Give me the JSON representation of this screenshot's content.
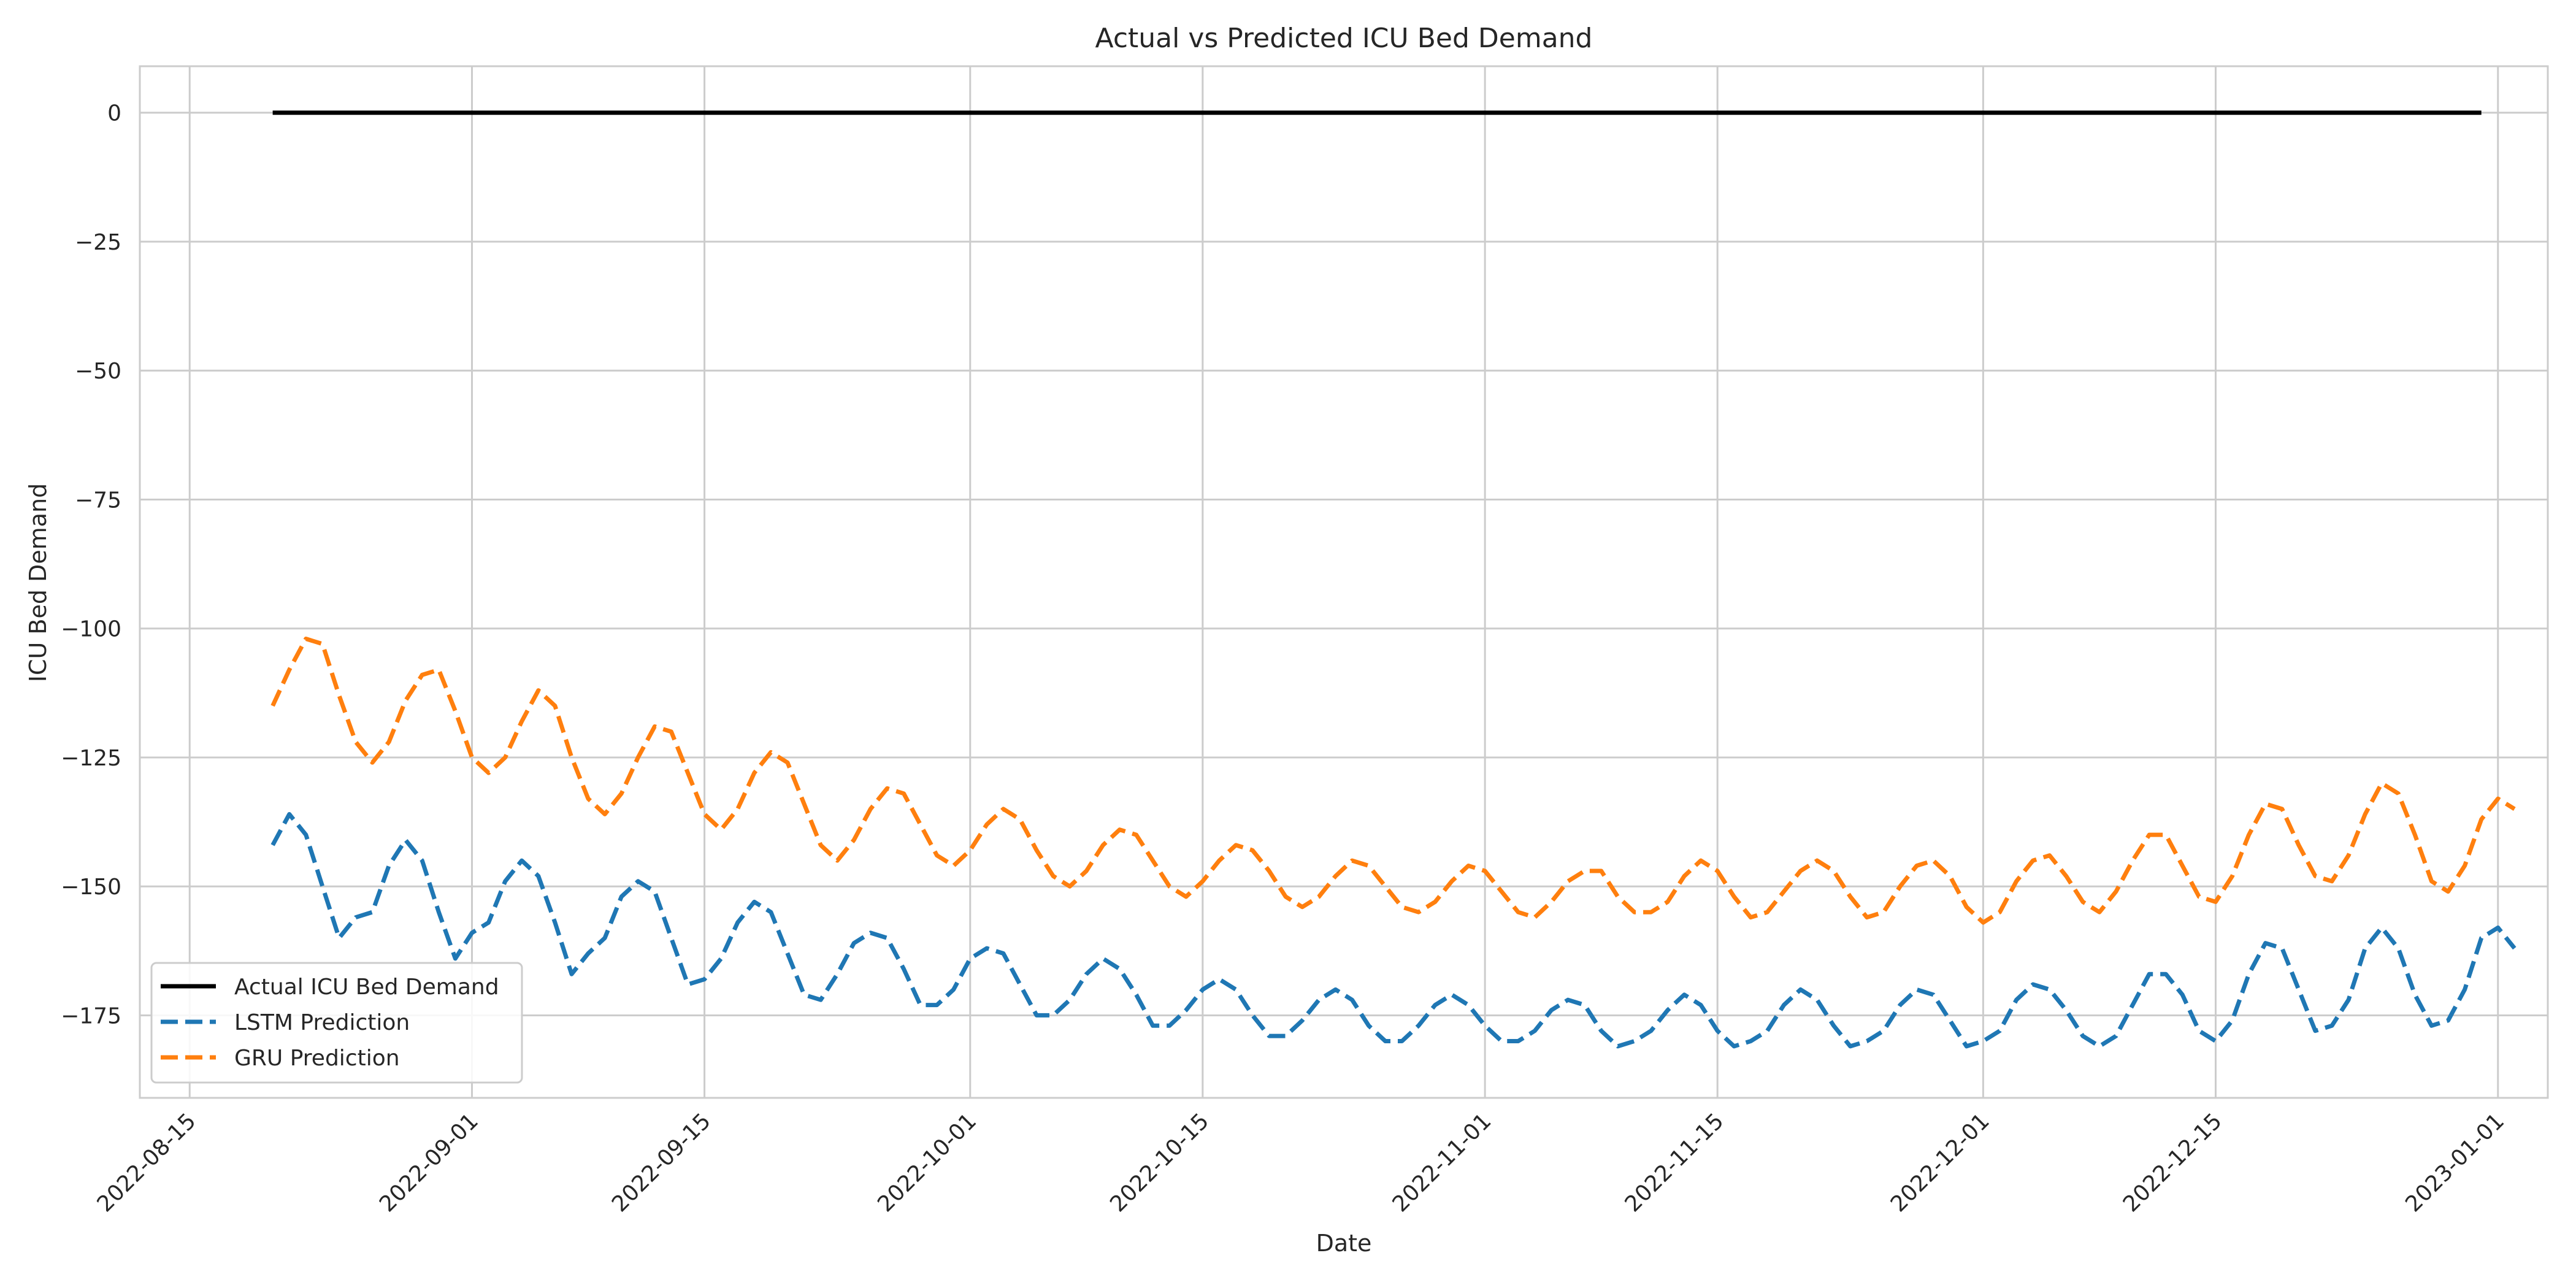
{
  "chart_data": {
    "type": "line",
    "title": "Actual vs Predicted ICU Bed Demand",
    "xlabel": "Date",
    "ylabel": "ICU Bed Demand",
    "x_start": "2022-08-20",
    "x_end": "2022-12-31",
    "xlim": [
      "2022-08-12",
      "2023-01-04"
    ],
    "ylim": [
      -191,
      9
    ],
    "x_ticks": [
      "2022-08-15",
      "2022-09-01",
      "2022-09-15",
      "2022-10-01",
      "2022-10-15",
      "2022-11-01",
      "2022-11-15",
      "2022-12-01",
      "2022-12-15",
      "2023-01-01"
    ],
    "y_ticks": [
      0,
      -25,
      -50,
      -75,
      -100,
      -125,
      -150,
      -175
    ],
    "y_tick_labels": [
      "0",
      "−25",
      "−50",
      "−75",
      "−100",
      "−125",
      "−150",
      "−175"
    ],
    "grid": true,
    "legend_position": "lower-left",
    "series": [
      {
        "name": "Actual ICU Bed Demand",
        "color": "#000000",
        "style": "solid",
        "points": [
          [
            "2022-08-20",
            0
          ],
          [
            "2022-12-31",
            0
          ]
        ]
      },
      {
        "name": "LSTM Prediction",
        "color": "#1f77b4",
        "style": "dashed",
        "points": [
          [
            "2022-08-20",
            -142
          ],
          [
            "2022-08-21",
            -136
          ],
          [
            "2022-08-22",
            -140
          ],
          [
            "2022-08-23",
            -150
          ],
          [
            "2022-08-24",
            -160
          ],
          [
            "2022-08-25",
            -156
          ],
          [
            "2022-08-26",
            -155
          ],
          [
            "2022-08-27",
            -146
          ],
          [
            "2022-08-28",
            -141
          ],
          [
            "2022-08-29",
            -145
          ],
          [
            "2022-08-30",
            -155
          ],
          [
            "2022-08-31",
            -164
          ],
          [
            "2022-09-01",
            -159
          ],
          [
            "2022-09-02",
            -157
          ],
          [
            "2022-09-03",
            -149
          ],
          [
            "2022-09-04",
            -145
          ],
          [
            "2022-09-05",
            -148
          ],
          [
            "2022-09-06",
            -157
          ],
          [
            "2022-09-07",
            -167
          ],
          [
            "2022-09-08",
            -163
          ],
          [
            "2022-09-09",
            -160
          ],
          [
            "2022-09-10",
            -152
          ],
          [
            "2022-09-11",
            -149
          ],
          [
            "2022-09-12",
            -151
          ],
          [
            "2022-09-13",
            -160
          ],
          [
            "2022-09-14",
            -169
          ],
          [
            "2022-09-15",
            -168
          ],
          [
            "2022-09-16",
            -164
          ],
          [
            "2022-09-17",
            -157
          ],
          [
            "2022-09-18",
            -153
          ],
          [
            "2022-09-19",
            -155
          ],
          [
            "2022-09-20",
            -163
          ],
          [
            "2022-09-21",
            -171
          ],
          [
            "2022-09-22",
            -172
          ],
          [
            "2022-09-23",
            -167
          ],
          [
            "2022-09-24",
            -161
          ],
          [
            "2022-09-25",
            -159
          ],
          [
            "2022-09-26",
            -160
          ],
          [
            "2022-09-27",
            -166
          ],
          [
            "2022-09-28",
            -173
          ],
          [
            "2022-09-29",
            -173
          ],
          [
            "2022-09-30",
            -170
          ],
          [
            "2022-10-01",
            -164
          ],
          [
            "2022-10-02",
            -162
          ],
          [
            "2022-10-03",
            -163
          ],
          [
            "2022-10-04",
            -169
          ],
          [
            "2022-10-05",
            -175
          ],
          [
            "2022-10-06",
            -175
          ],
          [
            "2022-10-07",
            -172
          ],
          [
            "2022-10-08",
            -167
          ],
          [
            "2022-10-09",
            -164
          ],
          [
            "2022-10-10",
            -166
          ],
          [
            "2022-10-11",
            -171
          ],
          [
            "2022-10-12",
            -177
          ],
          [
            "2022-10-13",
            -177
          ],
          [
            "2022-10-14",
            -174
          ],
          [
            "2022-10-15",
            -170
          ],
          [
            "2022-10-16",
            -168
          ],
          [
            "2022-10-17",
            -170
          ],
          [
            "2022-10-18",
            -175
          ],
          [
            "2022-10-19",
            -179
          ],
          [
            "2022-10-20",
            -179
          ],
          [
            "2022-10-21",
            -176
          ],
          [
            "2022-10-22",
            -172
          ],
          [
            "2022-10-23",
            -170
          ],
          [
            "2022-10-24",
            -172
          ],
          [
            "2022-10-25",
            -177
          ],
          [
            "2022-10-26",
            -180
          ],
          [
            "2022-10-27",
            -180
          ],
          [
            "2022-10-28",
            -177
          ],
          [
            "2022-10-29",
            -173
          ],
          [
            "2022-10-30",
            -171
          ],
          [
            "2022-10-31",
            -173
          ],
          [
            "2022-11-01",
            -177
          ],
          [
            "2022-11-02",
            -180
          ],
          [
            "2022-11-03",
            -180
          ],
          [
            "2022-11-04",
            -178
          ],
          [
            "2022-11-05",
            -174
          ],
          [
            "2022-11-06",
            -172
          ],
          [
            "2022-11-07",
            -173
          ],
          [
            "2022-11-08",
            -178
          ],
          [
            "2022-11-09",
            -181
          ],
          [
            "2022-11-10",
            -180
          ],
          [
            "2022-11-11",
            -178
          ],
          [
            "2022-11-12",
            -174
          ],
          [
            "2022-11-13",
            -171
          ],
          [
            "2022-11-14",
            -173
          ],
          [
            "2022-11-15",
            -178
          ],
          [
            "2022-11-16",
            -181
          ],
          [
            "2022-11-17",
            -180
          ],
          [
            "2022-11-18",
            -178
          ],
          [
            "2022-11-19",
            -173
          ],
          [
            "2022-11-20",
            -170
          ],
          [
            "2022-11-21",
            -172
          ],
          [
            "2022-11-22",
            -177
          ],
          [
            "2022-11-23",
            -181
          ],
          [
            "2022-11-24",
            -180
          ],
          [
            "2022-11-25",
            -178
          ],
          [
            "2022-11-26",
            -173
          ],
          [
            "2022-11-27",
            -170
          ],
          [
            "2022-11-28",
            -171
          ],
          [
            "2022-11-29",
            -176
          ],
          [
            "2022-11-30",
            -181
          ],
          [
            "2022-12-01",
            -180
          ],
          [
            "2022-12-02",
            -178
          ],
          [
            "2022-12-03",
            -172
          ],
          [
            "2022-12-04",
            -169
          ],
          [
            "2022-12-05",
            -170
          ],
          [
            "2022-12-06",
            -174
          ],
          [
            "2022-12-07",
            -179
          ],
          [
            "2022-12-08",
            -181
          ],
          [
            "2022-12-09",
            -179
          ],
          [
            "2022-12-10",
            -173
          ],
          [
            "2022-12-11",
            -167
          ],
          [
            "2022-12-12",
            -167
          ],
          [
            "2022-12-13",
            -171
          ],
          [
            "2022-12-14",
            -178
          ],
          [
            "2022-12-15",
            -180
          ],
          [
            "2022-12-16",
            -176
          ],
          [
            "2022-12-17",
            -167
          ],
          [
            "2022-12-18",
            -161
          ],
          [
            "2022-12-19",
            -162
          ],
          [
            "2022-12-20",
            -170
          ],
          [
            "2022-12-21",
            -178
          ],
          [
            "2022-12-22",
            -177
          ],
          [
            "2022-12-23",
            -172
          ],
          [
            "2022-12-24",
            -162
          ],
          [
            "2022-12-25",
            -158
          ],
          [
            "2022-12-26",
            -162
          ],
          [
            "2022-12-27",
            -171
          ],
          [
            "2022-12-28",
            -177
          ],
          [
            "2022-12-29",
            -176
          ],
          [
            "2022-12-30",
            -170
          ],
          [
            "2022-12-31",
            -160
          ],
          [
            "2023-01-01",
            -158
          ],
          [
            "2023-01-02",
            -162
          ]
        ]
      },
      {
        "name": "GRU Prediction",
        "color": "#ff7f0e",
        "style": "dashed",
        "points": [
          [
            "2022-08-20",
            -115
          ],
          [
            "2022-08-21",
            -108
          ],
          [
            "2022-08-22",
            -102
          ],
          [
            "2022-08-23",
            -103
          ],
          [
            "2022-08-24",
            -113
          ],
          [
            "2022-08-25",
            -122
          ],
          [
            "2022-08-26",
            -126
          ],
          [
            "2022-08-27",
            -122
          ],
          [
            "2022-08-28",
            -114
          ],
          [
            "2022-08-29",
            -109
          ],
          [
            "2022-08-30",
            -108
          ],
          [
            "2022-08-31",
            -116
          ],
          [
            "2022-09-01",
            -125
          ],
          [
            "2022-09-02",
            -128
          ],
          [
            "2022-09-03",
            -125
          ],
          [
            "2022-09-04",
            -118
          ],
          [
            "2022-09-05",
            -112
          ],
          [
            "2022-09-06",
            -115
          ],
          [
            "2022-09-07",
            -125
          ],
          [
            "2022-09-08",
            -133
          ],
          [
            "2022-09-09",
            -136
          ],
          [
            "2022-09-10",
            -132
          ],
          [
            "2022-09-11",
            -125
          ],
          [
            "2022-09-12",
            -119
          ],
          [
            "2022-09-13",
            -120
          ],
          [
            "2022-09-14",
            -128
          ],
          [
            "2022-09-15",
            -136
          ],
          [
            "2022-09-16",
            -139
          ],
          [
            "2022-09-17",
            -135
          ],
          [
            "2022-09-18",
            -128
          ],
          [
            "2022-09-19",
            -124
          ],
          [
            "2022-09-20",
            -126
          ],
          [
            "2022-09-21",
            -134
          ],
          [
            "2022-09-22",
            -142
          ],
          [
            "2022-09-23",
            -145
          ],
          [
            "2022-09-24",
            -141
          ],
          [
            "2022-09-25",
            -135
          ],
          [
            "2022-09-26",
            -131
          ],
          [
            "2022-09-27",
            -132
          ],
          [
            "2022-09-28",
            -138
          ],
          [
            "2022-09-29",
            -144
          ],
          [
            "2022-09-30",
            -146
          ],
          [
            "2022-10-01",
            -143
          ],
          [
            "2022-10-02",
            -138
          ],
          [
            "2022-10-03",
            -135
          ],
          [
            "2022-10-04",
            -137
          ],
          [
            "2022-10-05",
            -143
          ],
          [
            "2022-10-06",
            -148
          ],
          [
            "2022-10-07",
            -150
          ],
          [
            "2022-10-08",
            -147
          ],
          [
            "2022-10-09",
            -142
          ],
          [
            "2022-10-10",
            -139
          ],
          [
            "2022-10-11",
            -140
          ],
          [
            "2022-10-12",
            -145
          ],
          [
            "2022-10-13",
            -150
          ],
          [
            "2022-10-14",
            -152
          ],
          [
            "2022-10-15",
            -149
          ],
          [
            "2022-10-16",
            -145
          ],
          [
            "2022-10-17",
            -142
          ],
          [
            "2022-10-18",
            -143
          ],
          [
            "2022-10-19",
            -147
          ],
          [
            "2022-10-20",
            -152
          ],
          [
            "2022-10-21",
            -154
          ],
          [
            "2022-10-22",
            -152
          ],
          [
            "2022-10-23",
            -148
          ],
          [
            "2022-10-24",
            -145
          ],
          [
            "2022-10-25",
            -146
          ],
          [
            "2022-10-26",
            -150
          ],
          [
            "2022-10-27",
            -154
          ],
          [
            "2022-10-28",
            -155
          ],
          [
            "2022-10-29",
            -153
          ],
          [
            "2022-10-30",
            -149
          ],
          [
            "2022-10-31",
            -146
          ],
          [
            "2022-11-01",
            -147
          ],
          [
            "2022-11-02",
            -151
          ],
          [
            "2022-11-03",
            -155
          ],
          [
            "2022-11-04",
            -156
          ],
          [
            "2022-11-05",
            -153
          ],
          [
            "2022-11-06",
            -149
          ],
          [
            "2022-11-07",
            -147
          ],
          [
            "2022-11-08",
            -147
          ],
          [
            "2022-11-09",
            -152
          ],
          [
            "2022-11-10",
            -155
          ],
          [
            "2022-11-11",
            -155
          ],
          [
            "2022-11-12",
            -153
          ],
          [
            "2022-11-13",
            -148
          ],
          [
            "2022-11-14",
            -145
          ],
          [
            "2022-11-15",
            -147
          ],
          [
            "2022-11-16",
            -152
          ],
          [
            "2022-11-17",
            -156
          ],
          [
            "2022-11-18",
            -155
          ],
          [
            "2022-11-19",
            -151
          ],
          [
            "2022-11-20",
            -147
          ],
          [
            "2022-11-21",
            -145
          ],
          [
            "2022-11-22",
            -147
          ],
          [
            "2022-11-23",
            -152
          ],
          [
            "2022-11-24",
            -156
          ],
          [
            "2022-11-25",
            -155
          ],
          [
            "2022-11-26",
            -150
          ],
          [
            "2022-11-27",
            -146
          ],
          [
            "2022-11-28",
            -145
          ],
          [
            "2022-11-29",
            -148
          ],
          [
            "2022-11-30",
            -154
          ],
          [
            "2022-12-01",
            -157
          ],
          [
            "2022-12-02",
            -155
          ],
          [
            "2022-12-03",
            -149
          ],
          [
            "2022-12-04",
            -145
          ],
          [
            "2022-12-05",
            -144
          ],
          [
            "2022-12-06",
            -148
          ],
          [
            "2022-12-07",
            -153
          ],
          [
            "2022-12-08",
            -155
          ],
          [
            "2022-12-09",
            -151
          ],
          [
            "2022-12-10",
            -145
          ],
          [
            "2022-12-11",
            -140
          ],
          [
            "2022-12-12",
            -140
          ],
          [
            "2022-12-13",
            -146
          ],
          [
            "2022-12-14",
            -152
          ],
          [
            "2022-12-15",
            -153
          ],
          [
            "2022-12-16",
            -148
          ],
          [
            "2022-12-17",
            -140
          ],
          [
            "2022-12-18",
            -134
          ],
          [
            "2022-12-19",
            -135
          ],
          [
            "2022-12-20",
            -142
          ],
          [
            "2022-12-21",
            -148
          ],
          [
            "2022-12-22",
            -149
          ],
          [
            "2022-12-23",
            -144
          ],
          [
            "2022-12-24",
            -136
          ],
          [
            "2022-12-25",
            -130
          ],
          [
            "2022-12-26",
            -132
          ],
          [
            "2022-12-27",
            -140
          ],
          [
            "2022-12-28",
            -149
          ],
          [
            "2022-12-29",
            -151
          ],
          [
            "2022-12-30",
            -146
          ],
          [
            "2022-12-31",
            -137
          ],
          [
            "2023-01-01",
            -133
          ],
          [
            "2023-01-02",
            -135
          ]
        ]
      }
    ]
  }
}
